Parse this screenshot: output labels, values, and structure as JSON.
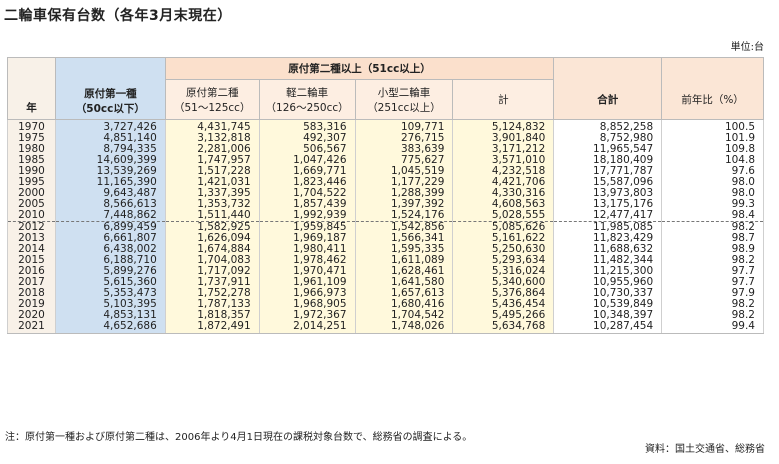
{
  "title": "二輪車保有台数（各年3月末現在）",
  "unit": "単位:台",
  "headers": {
    "year": "年",
    "gen1_line1": "原付第一種",
    "gen1_line2": "（50cc以下）",
    "group": "原付第二種以上（51cc以上）",
    "gen2_line1": "原付第二種",
    "gen2_line2": "（51～125cc）",
    "kei_line1": "軽二輪車",
    "kei_line2": "（126～250cc）",
    "small_line1": "小型二輪車",
    "small_line2": "（251cc以上）",
    "sum": "計",
    "total": "合計",
    "ratio": "前年比（%）"
  },
  "rows": [
    [
      "1970",
      "3,727,426",
      "4,431,745",
      "583,316",
      "109,771",
      "5,124,832",
      "8,852,258",
      "100.5"
    ],
    [
      "1975",
      "4,851,140",
      "3,132,818",
      "492,307",
      "276,715",
      "3,901,840",
      "8,752,980",
      "101.9"
    ],
    [
      "1980",
      "8,794,335",
      "2,281,006",
      "506,567",
      "383,639",
      "3,171,212",
      "11,965,547",
      "109.8"
    ],
    [
      "1985",
      "14,609,399",
      "1,747,957",
      "1,047,426",
      "775,627",
      "3,571,010",
      "18,180,409",
      "104.8"
    ],
    [
      "1990",
      "13,539,269",
      "1,517,228",
      "1,669,771",
      "1,045,519",
      "4,232,518",
      "17,771,787",
      "97.6"
    ],
    [
      "1995",
      "11,165,390",
      "1,421,031",
      "1,823,446",
      "1,177,229",
      "4,421,706",
      "15,587,096",
      "98.0"
    ],
    [
      "2000",
      "9,643,487",
      "1,337,395",
      "1,704,522",
      "1,288,399",
      "4,330,316",
      "13,973,803",
      "98.0"
    ],
    [
      "2005",
      "8,566,613",
      "1,353,732",
      "1,857,439",
      "1,397,392",
      "4,608,563",
      "13,175,176",
      "99.3"
    ],
    [
      "2010",
      "7,448,862",
      "1,511,440",
      "1,992,939",
      "1,524,176",
      "5,028,555",
      "12,477,417",
      "98.4"
    ],
    [
      "2012",
      "6,899,459",
      "1,582,925",
      "1,959,845",
      "1,542,856",
      "5,085,626",
      "11,985,085",
      "98.2"
    ],
    [
      "2013",
      "6,661,807",
      "1,626,094",
      "1,969,187",
      "1,566,341",
      "5,161,622",
      "11,823,429",
      "98.7"
    ],
    [
      "2014",
      "6,438,002",
      "1,674,884",
      "1,980,411",
      "1,595,335",
      "5,250,630",
      "11,688,632",
      "98.9"
    ],
    [
      "2015",
      "6,188,710",
      "1,704,083",
      "1,978,462",
      "1,611,089",
      "5,293,634",
      "11,482,344",
      "98.2"
    ],
    [
      "2016",
      "5,899,276",
      "1,717,092",
      "1,970,471",
      "1,628,461",
      "5,316,024",
      "11,215,300",
      "97.7"
    ],
    [
      "2017",
      "5,615,360",
      "1,737,911",
      "1,961,109",
      "1,641,580",
      "5,340,600",
      "10,955,960",
      "97.7"
    ],
    [
      "2018",
      "5,353,473",
      "1,752,278",
      "1,966,973",
      "1,657,613",
      "5,376,864",
      "10,730,337",
      "97.9"
    ],
    [
      "2019",
      "5,103,395",
      "1,787,133",
      "1,968,905",
      "1,680,416",
      "5,436,454",
      "10,539,849",
      "98.2"
    ],
    [
      "2020",
      "4,853,131",
      "1,818,357",
      "1,972,367",
      "1,704,542",
      "5,495,266",
      "10,348,397",
      "98.2"
    ],
    [
      "2021",
      "4,652,686",
      "1,872,491",
      "2,014,251",
      "1,748,026",
      "5,634,768",
      "10,287,454",
      "99.4"
    ]
  ],
  "note": "注：原付第一種および原付第二種は、2006年より4月1日現在の課税対象台数で、総務省の調査による。",
  "source": "資料：国土交通省、総務省"
}
